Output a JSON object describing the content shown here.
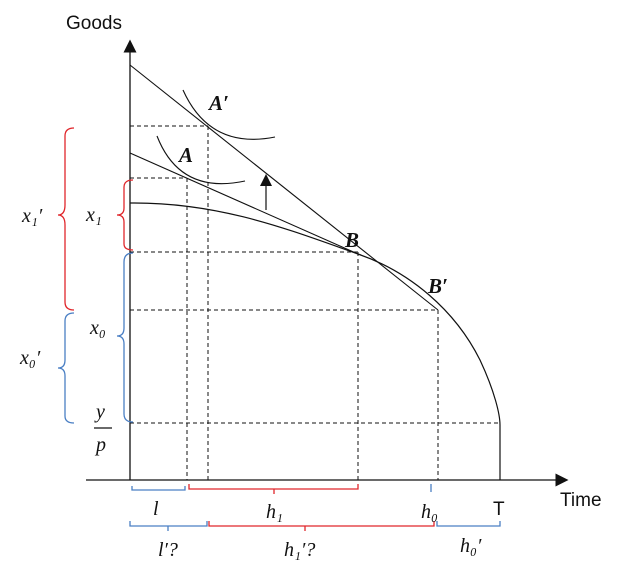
{
  "axes": {
    "y_label": "Goods",
    "x_label": "Time",
    "x_end_label": "T"
  },
  "points": {
    "A_prime": "A′",
    "A": "A",
    "B": "B",
    "B_prime": "B′"
  },
  "left_labels": {
    "x1_prime": "x₁′",
    "x1": "x₁",
    "x0": "x₀",
    "x0_prime": "x₀′",
    "y_over_p_num": "y",
    "y_over_p_den": "p"
  },
  "bottom_labels": {
    "l": "l",
    "h1": "h₁",
    "h0": "h₀",
    "l_prime_q": "l′?",
    "h1_prime_q": "h₁′?",
    "h0_prime": "h₀′"
  },
  "colors": {
    "red_brace": "#e0262b",
    "blue_brace": "#4a7fc4",
    "line": "#111111"
  }
}
